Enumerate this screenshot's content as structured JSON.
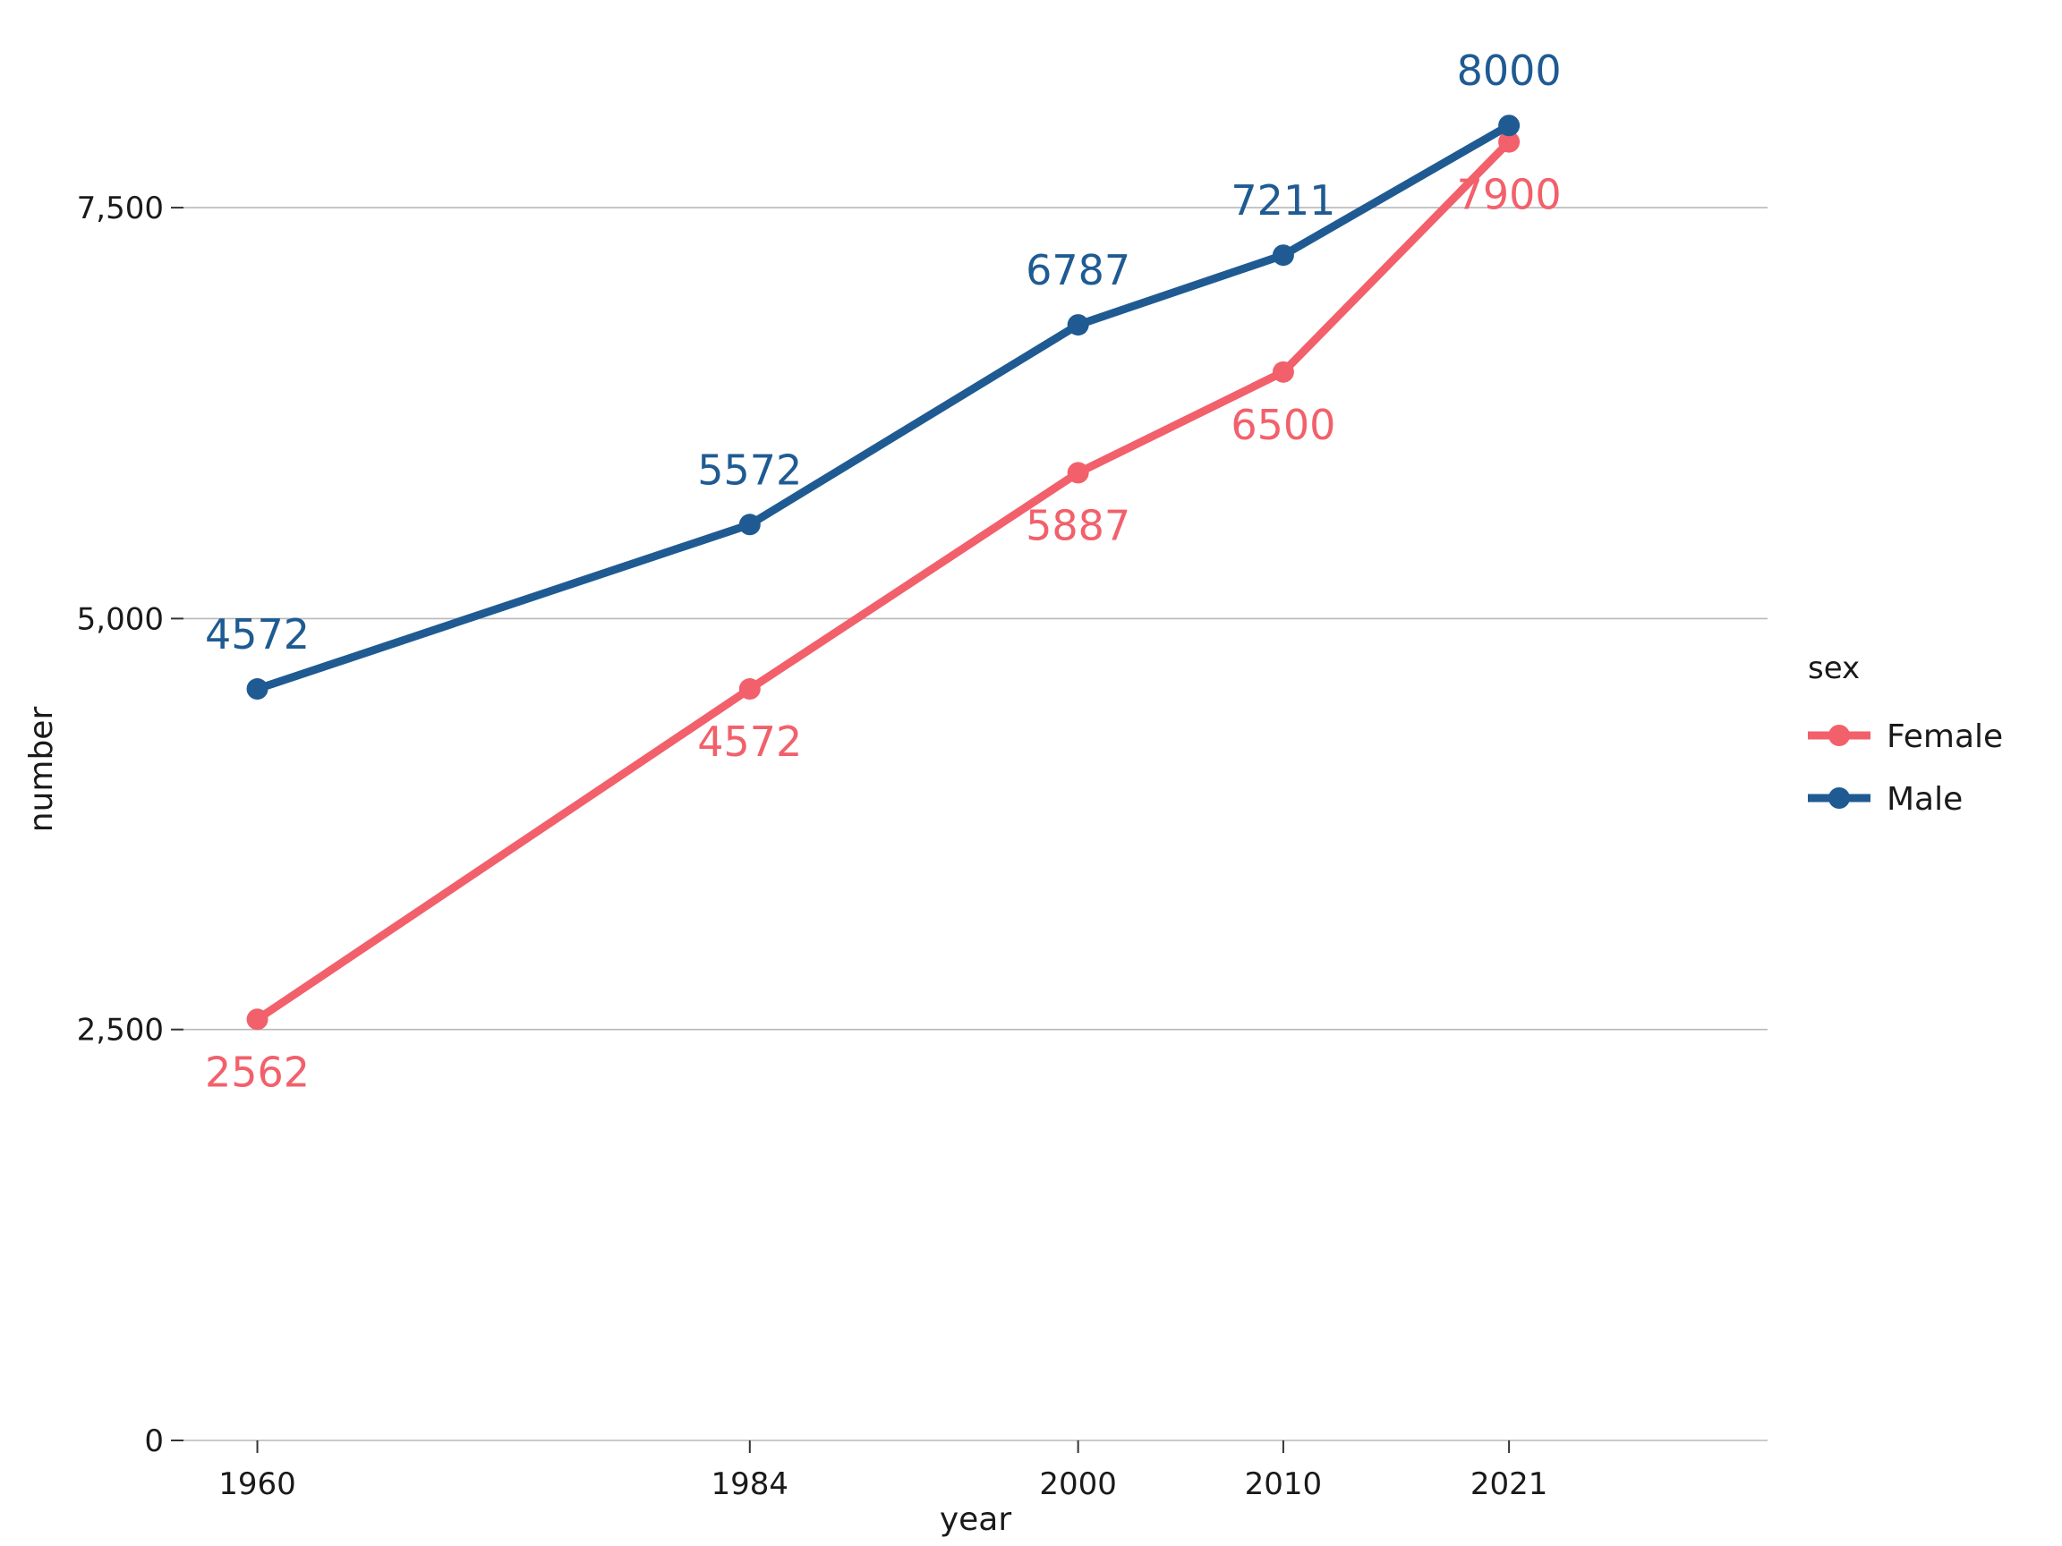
{
  "chart_data": {
    "type": "line",
    "x": [
      1960,
      1984,
      2000,
      2010,
      2021
    ],
    "xlabel": "year",
    "ylabel": "number",
    "ylim": [
      0,
      8600
    ],
    "xlim": [
      1956.4,
      2033.6
    ],
    "y_ticks": [
      0,
      2500,
      5000,
      7500
    ],
    "y_tick_labels": [
      "0",
      "2,500",
      "5,000",
      "7,500"
    ],
    "x_ticks": [
      1960,
      1984,
      2000,
      2010,
      2021
    ],
    "x_tick_labels": [
      "1960",
      "1984",
      "2000",
      "2010",
      "2021"
    ],
    "grid": "horizontal",
    "legend_title": "sex",
    "legend_position": "right",
    "series": [
      {
        "name": "Female",
        "color": "#F2606B",
        "values": [
          2562,
          4572,
          5887,
          6500,
          7900
        ],
        "labels": [
          "2562",
          "4572",
          "5887",
          "6500",
          "7900"
        ],
        "label_position": "below"
      },
      {
        "name": "Male",
        "color": "#1F5B92",
        "values": [
          4572,
          5572,
          6787,
          7211,
          8000
        ],
        "labels": [
          "4572",
          "5572",
          "6787",
          "7211",
          "8000"
        ],
        "label_position": "above"
      }
    ]
  }
}
